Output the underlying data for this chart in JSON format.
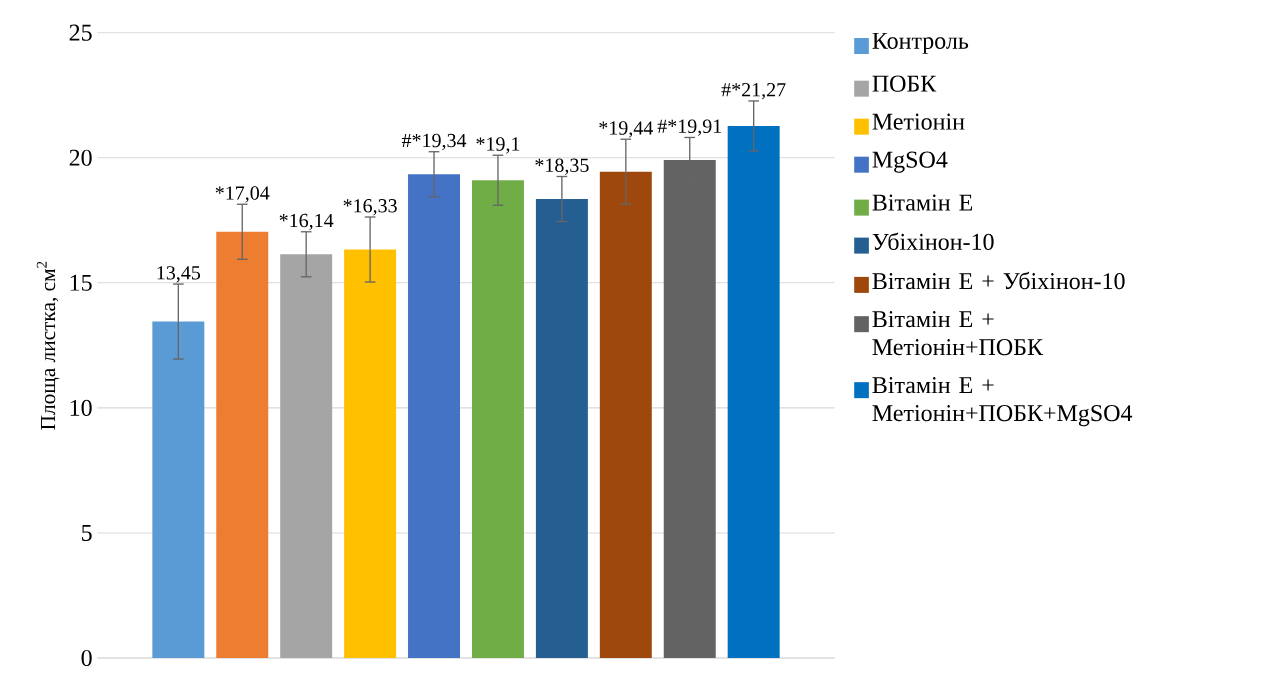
{
  "chart_data": {
    "type": "bar",
    "ylabel": "Площа листка, см$^{2}$",
    "categories": [
      null
    ],
    "ylim": [
      0,
      25
    ],
    "yticks": [
      0,
      5,
      10,
      15,
      20,
      25
    ],
    "grid": "y",
    "legend": "right",
    "series": [
      {
        "name": "Контроль",
        "color": "#5b9bd5",
        "values": [
          13.45
        ],
        "errors": [
          1.5
        ],
        "value_labels": [
          "13,45"
        ]
      },
      {
        "color": "#ed7d31",
        "values": [
          17.04
        ],
        "errors": [
          1.1
        ],
        "value_labels": [
          "*17,04"
        ]
      },
      {
        "name": "ПОБК",
        "color": "#a5a5a5",
        "values": [
          16.14
        ],
        "errors": [
          0.9
        ],
        "value_labels": [
          "*16,14"
        ]
      },
      {
        "name": "Метіонін",
        "color": "#ffc000",
        "values": [
          16.33
        ],
        "errors": [
          1.3
        ],
        "value_labels": [
          "*16,33"
        ]
      },
      {
        "name": "MgSO4",
        "color": "#4472c4",
        "values": [
          19.34
        ],
        "errors": [
          0.9
        ],
        "value_labels": [
          "#*19,34"
        ]
      },
      {
        "name": "Вітамін Е",
        "color": "#70ad47",
        "values": [
          19.1
        ],
        "errors": [
          1.0
        ],
        "value_labels": [
          "*19,1"
        ]
      },
      {
        "name": "Убіхінон-10",
        "color": "#255e91",
        "values": [
          18.35
        ],
        "errors": [
          0.9
        ],
        "value_labels": [
          "*18,35"
        ]
      },
      {
        "name": "Вітамін Е + Убіхінон-10",
        "color": "#9e480e",
        "values": [
          19.44
        ],
        "errors": [
          1.3
        ],
        "value_labels": [
          "*19,44"
        ]
      },
      {
        "name": "Вітамін Е + Метіонін+ПОБК",
        "color": "#636363",
        "values": [
          19.91
        ],
        "errors": [
          0.9
        ],
        "value_labels": [
          "#*19,91"
        ]
      },
      {
        "name": "Вітамін Е + Метіонін+ПОБК+MgSO4",
        "color": "#0070c0",
        "values": [
          21.27
        ],
        "errors": [
          1.0
        ],
        "value_labels": [
          "#*21,27"
        ]
      }
    ]
  }
}
